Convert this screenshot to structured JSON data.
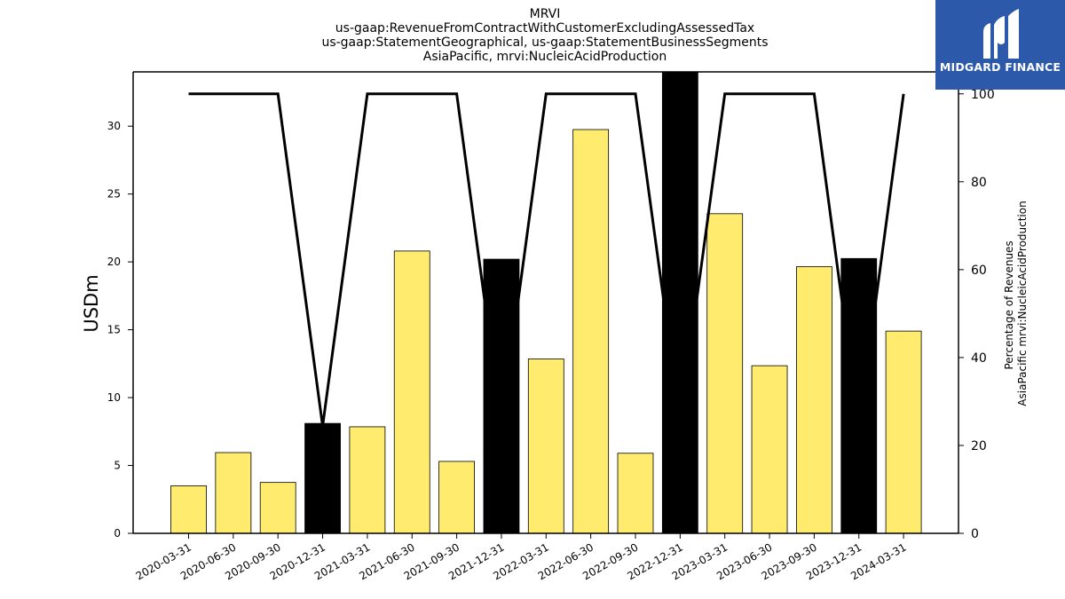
{
  "chart_data": {
    "type": "bar+line",
    "title_lines": [
      "MRVI",
      "us-gaap:RevenueFromContractWithCustomerExcludingAssessedTax",
      "us-gaap:StatementGeographical, us-gaap:StatementBusinessSegments",
      "AsiaPacific, mrvi:NucleicAcidProduction"
    ],
    "ylabel_left": "USDm",
    "ylabel_right_lines": [
      "Percentage of Revenues",
      "AsiaPacific mrvi:NucleicAcidProduction"
    ],
    "categories": [
      "2020-03-31",
      "2020-06-30",
      "2020-09-30",
      "2020-12-31",
      "2021-03-31",
      "2021-06-30",
      "2021-09-30",
      "2021-12-31",
      "2022-03-31",
      "2022-06-30",
      "2022-09-30",
      "2022-12-31",
      "2023-03-31",
      "2023-06-30",
      "2023-09-30",
      "2023-12-31",
      "2024-03-31"
    ],
    "bar_values": [
      3.5,
      5.95,
      3.75,
      8.1,
      7.85,
      20.8,
      5.3,
      20.2,
      12.85,
      29.75,
      5.9,
      34.0,
      23.55,
      12.35,
      19.65,
      20.25,
      14.9
    ],
    "bar_highlight": [
      false,
      false,
      false,
      true,
      false,
      false,
      false,
      true,
      false,
      false,
      false,
      true,
      false,
      false,
      false,
      true,
      false
    ],
    "line_values": [
      100,
      100,
      100,
      24.4,
      100,
      100,
      100,
      24.7,
      100,
      100,
      100,
      25.6,
      100,
      100,
      100,
      24.2,
      100
    ],
    "y_left_ticks": [
      0,
      5,
      10,
      15,
      20,
      25,
      30
    ],
    "y_left_ylim": [
      0,
      34
    ],
    "y_right_ticks": [
      0,
      20,
      40,
      60,
      80,
      100
    ],
    "y_right_ylim": [
      0,
      105
    ],
    "colors": {
      "bar": "#ffeb6e",
      "bar_highlight": "#000000",
      "line": "#000000",
      "logo_bg": "#2d59ab"
    },
    "grid": false
  },
  "logo": {
    "text": "MIDGARD FINANCE"
  }
}
